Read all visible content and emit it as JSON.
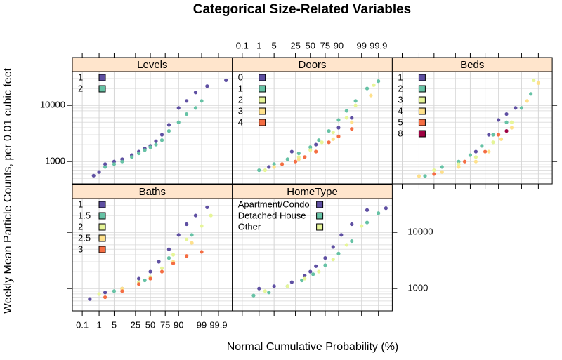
{
  "chart_data": {
    "type": "scatter",
    "title": "Categorical Size-Related Variables",
    "xlabel": "Normal Cumulative Probability (%)",
    "ylabel": "Weekly Mean Particle Counts, per 0.01 cubic feet",
    "xscale": "probit",
    "yscale": "log",
    "grid": true,
    "xlim": [
      0.02,
      99.99
    ],
    "ylim": [
      400,
      40000
    ],
    "xticks": [
      0.1,
      1,
      5,
      25,
      50,
      75,
      90,
      99,
      99.9
    ],
    "yticks": [
      1000,
      10000
    ],
    "legend": "top-left",
    "panels": [
      {
        "title": "Levels",
        "series": [
          {
            "name": "1",
            "color": "#5E4FA2",
            "x": [
              0.5,
              1,
              2,
              5,
              10,
              20,
              30,
              40,
              50,
              60,
              70,
              80,
              90,
              95,
              98,
              99.5,
              99.97
            ],
            "y": [
              560,
              650,
              900,
              1000,
              1100,
              1300,
              1500,
              1700,
              1900,
              2300,
              3000,
              4500,
              9000,
              12000,
              17000,
              22000,
              28000
            ]
          },
          {
            "name": "2",
            "color": "#66C2A5",
            "x": [
              2,
              5,
              10,
              20,
              30,
              40,
              50,
              60,
              70,
              80,
              90,
              95,
              98,
              99
            ],
            "y": [
              800,
              900,
              1000,
              1200,
              1400,
              1600,
              1800,
              2000,
              2400,
              3500,
              5000,
              7000,
              9000,
              12000
            ]
          }
        ]
      },
      {
        "title": "Doors",
        "series": [
          {
            "name": "0",
            "color": "#5E4FA2",
            "x": [
              3,
              20,
              60,
              90,
              97
            ],
            "y": [
              800,
              1500,
              2000,
              4000,
              6000
            ]
          },
          {
            "name": "1",
            "color": "#66C2A5",
            "x": [
              1,
              5,
              15,
              30,
              50,
              65,
              80,
              90,
              95,
              98,
              99.5,
              99.9
            ],
            "y": [
              700,
              900,
              1100,
              1400,
              1800,
              2400,
              3500,
              5500,
              8000,
              12000,
              20000,
              27000
            ]
          },
          {
            "name": "2",
            "color": "#E6F598",
            "x": [
              2,
              10,
              30,
              50,
              70,
              85,
              95,
              98,
              99.8
            ],
            "y": [
              700,
              900,
              1200,
              1600,
              2200,
              3300,
              6000,
              10000,
              23000
            ]
          },
          {
            "name": "3",
            "color": "#FEE08B",
            "x": [
              5,
              30,
              60,
              85,
              97,
              99.7
            ],
            "y": [
              800,
              1100,
              1500,
              2500,
              5000,
              15000
            ]
          },
          {
            "name": "4",
            "color": "#F46D43",
            "x": [
              10,
              25,
              40,
              60,
              80,
              90,
              97
            ],
            "y": [
              900,
              1000,
              1200,
              1500,
              2200,
              2800,
              3800
            ]
          }
        ]
      },
      {
        "title": "Beds",
        "series": [
          {
            "name": "1",
            "color": "#5E4FA2",
            "x": [
              60,
              80,
              90,
              95,
              98
            ],
            "y": [
              1500,
              3000,
              5500,
              7000,
              9000
            ]
          },
          {
            "name": "2",
            "color": "#66C2A5",
            "x": [
              2,
              10,
              30,
              50,
              70,
              85,
              95,
              99,
              99.7
            ],
            "y": [
              550,
              800,
              1000,
              1300,
              1900,
              3000,
              5000,
              9000,
              16000
            ]
          },
          {
            "name": "3",
            "color": "#E6F598",
            "x": [
              5,
              30,
              60,
              85,
              97,
              99.8
            ],
            "y": [
              700,
              900,
              1200,
              2200,
              5000,
              28000
            ]
          },
          {
            "name": "4",
            "color": "#FEE08B",
            "x": [
              1,
              10,
              30,
              60,
              80,
              92,
              97,
              99.5,
              99.9
            ],
            "y": [
              550,
              650,
              800,
              1000,
              1500,
              2500,
              4000,
              12000,
              25000
            ]
          },
          {
            "name": "5",
            "color": "#F46D43",
            "x": [
              5,
              40,
              75,
              90
            ],
            "y": [
              600,
              1000,
              1500,
              3000
            ]
          },
          {
            "name": "8",
            "color": "#9E0142",
            "x": [
              95
            ],
            "y": [
              3500
            ]
          }
        ]
      },
      {
        "title": "Baths",
        "series": [
          {
            "name": "1",
            "color": "#5E4FA2",
            "x": [
              0.3,
              2,
              10,
              30,
              50,
              65,
              80,
              90,
              95,
              98,
              99.5
            ],
            "y": [
              650,
              850,
              1000,
              1500,
              2000,
              3000,
              5000,
              9000,
              14000,
              20000,
              28000
            ]
          },
          {
            "name": "1.5",
            "color": "#66C2A5",
            "x": [
              5,
              40,
              80,
              97
            ],
            "y": [
              900,
              1400,
              3500,
              9000
            ]
          },
          {
            "name": "2",
            "color": "#E6F598",
            "x": [
              1,
              10,
              30,
              50,
              70,
              85,
              95,
              99,
              99.7
            ],
            "y": [
              800,
              1000,
              1300,
              1600,
              2300,
              4000,
              7500,
              13000,
              20000
            ]
          },
          {
            "name": "2.5",
            "color": "#FEE08B",
            "x": [
              10,
              50,
              85,
              97
            ],
            "y": [
              1000,
              1500,
              3000,
              6500
            ]
          },
          {
            "name": "3",
            "color": "#F46D43",
            "x": [
              2,
              10,
              30,
              50,
              70,
              85,
              95,
              99
            ],
            "y": [
              700,
              900,
              1200,
              1500,
              2000,
              2800,
              3800,
              4500
            ]
          }
        ]
      },
      {
        "title": "HomeType",
        "series": [
          {
            "name": "Apartment/Condo",
            "color": "#5E4FA2",
            "x": [
              1,
              5,
              20,
              40,
              50,
              60,
              75,
              85,
              92,
              97,
              99.5,
              99.97
            ],
            "y": [
              1000,
              1100,
              1300,
              1700,
              2000,
              2500,
              3500,
              5500,
              9000,
              14000,
              25000,
              27000
            ]
          },
          {
            "name": "Detached House",
            "color": "#66C2A5",
            "x": [
              0.5,
              3,
              15,
              35,
              55,
              75,
              90,
              97,
              99.5,
              99.9
            ],
            "y": [
              750,
              850,
              1100,
              1400,
              1800,
              2600,
              4200,
              7000,
              15000,
              22000
            ]
          },
          {
            "name": "Other",
            "color": "#E6F598",
            "x": [
              2,
              15,
              40,
              65,
              85,
              95,
              99
            ],
            "y": [
              900,
              1100,
              1500,
              2000,
              3300,
              6000,
              13000
            ]
          }
        ]
      }
    ]
  }
}
